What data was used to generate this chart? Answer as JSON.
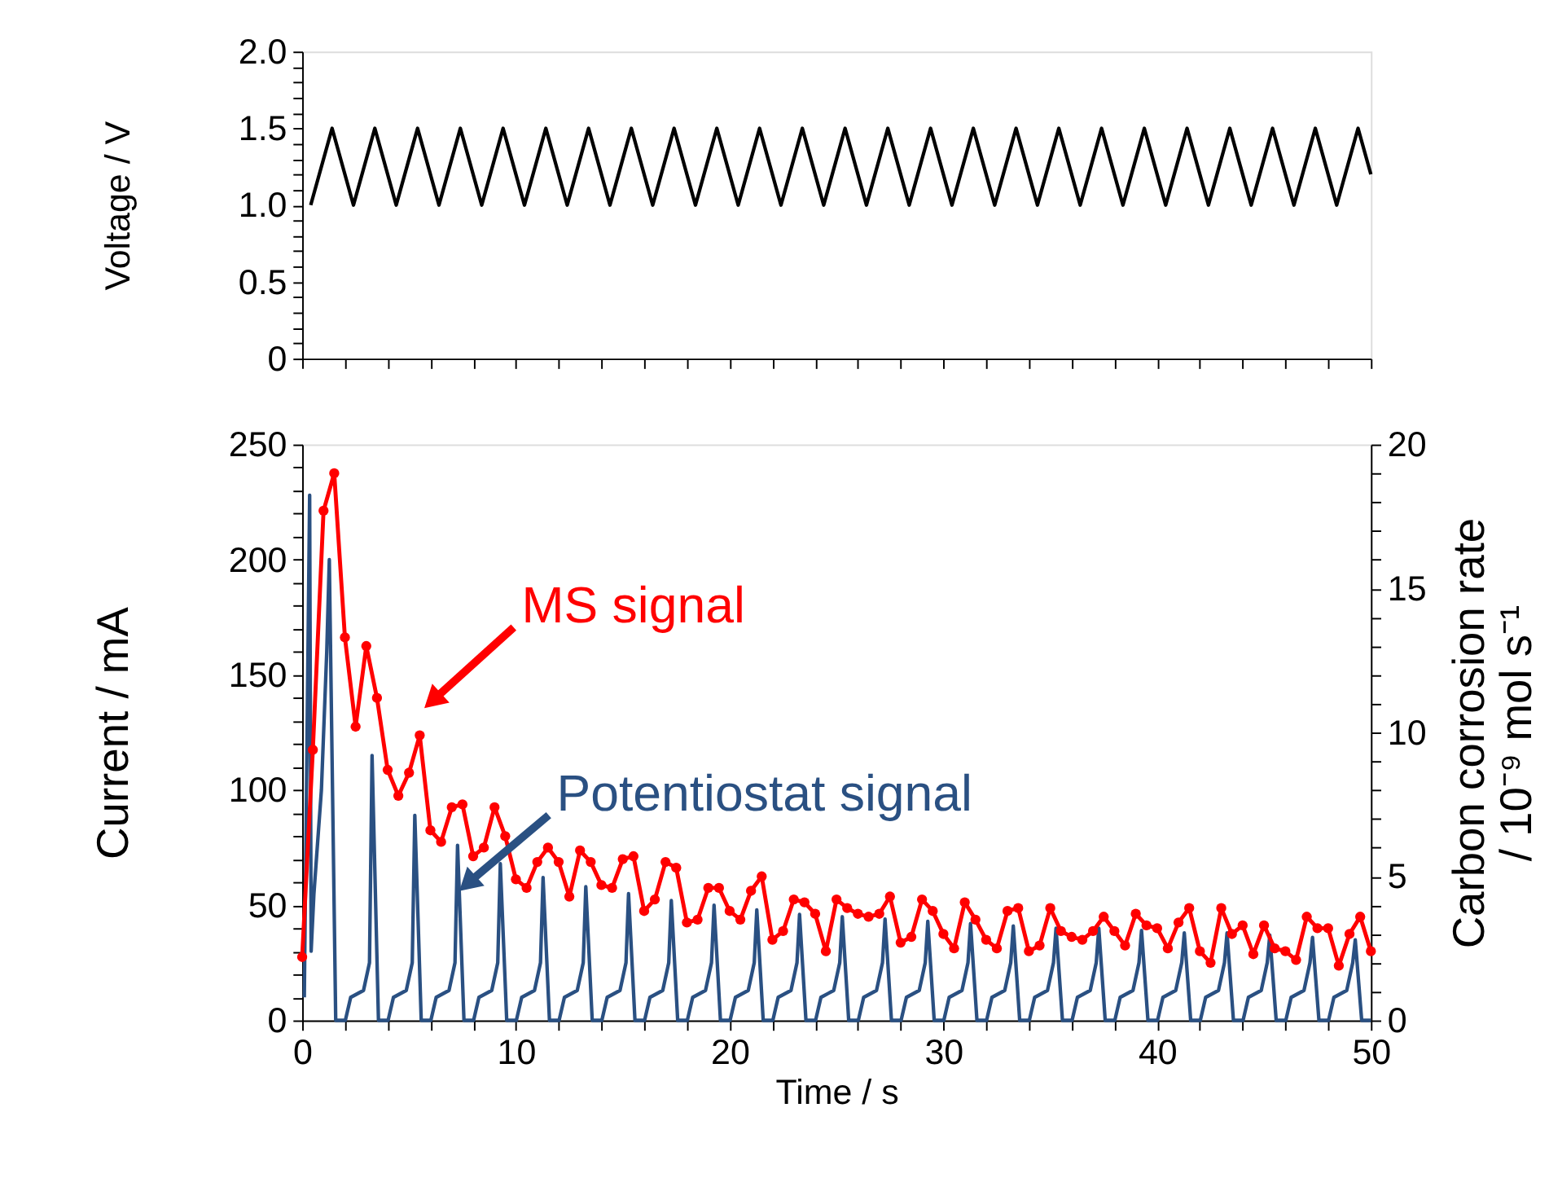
{
  "chart_data": [
    {
      "type": "line",
      "ylabel": "Voltage / V",
      "xlim": [
        0,
        50
      ],
      "ylim": [
        0,
        2.0
      ],
      "tick_labels": "y",
      "grid": false,
      "line_style": "solid",
      "xticks": [
        0,
        {
          "value": 2,
          "label": null
        },
        {
          "value": 4,
          "label": null
        },
        {
          "value": 6,
          "label": null
        },
        {
          "value": 8,
          "label": null
        },
        10,
        {
          "value": 12,
          "label": null
        },
        {
          "value": 14,
          "label": null
        },
        {
          "value": 16,
          "label": null
        },
        {
          "value": 18,
          "label": null
        },
        20,
        {
          "value": 22,
          "label": null
        },
        {
          "value": 24,
          "label": null
        },
        {
          "value": 26,
          "label": null
        },
        {
          "value": 28,
          "label": null
        },
        30,
        {
          "value": 32,
          "label": null
        },
        {
          "value": 34,
          "label": null
        },
        {
          "value": 36,
          "label": null
        },
        {
          "value": 38,
          "label": null
        },
        40,
        {
          "value": 42,
          "label": null
        },
        {
          "value": 44,
          "label": null
        },
        {
          "value": 46,
          "label": null
        },
        {
          "value": 48,
          "label": null
        },
        50
      ],
      "yticks": [
        0,
        {
          "value": 0.1,
          "label": null
        },
        {
          "value": 0.2,
          "label": null
        },
        {
          "value": 0.3,
          "label": null
        },
        {
          "value": 0.4,
          "label": null
        },
        0.5,
        {
          "value": 0.6,
          "label": null
        },
        {
          "value": 0.7,
          "label": null
        },
        {
          "value": 0.8,
          "label": null
        },
        {
          "value": 0.9,
          "label": null
        },
        {
          "value": 1.0,
          "label": "1.0"
        },
        {
          "value": 1.1,
          "label": null
        },
        {
          "value": 1.2,
          "label": null
        },
        {
          "value": 1.3,
          "label": null
        },
        {
          "value": 1.4,
          "label": null
        },
        1.5,
        {
          "value": 1.6,
          "label": null
        },
        {
          "value": 1.7,
          "label": null
        },
        {
          "value": 1.8,
          "label": null
        },
        {
          "value": 1.9,
          "label": null
        },
        {
          "value": 2.0,
          "label": "2.0"
        }
      ],
      "series": [
        {
          "color": "#000000",
          "x": [
            0.4,
            1.4,
            2.4,
            3.4,
            4.4,
            5.4,
            6.4,
            7.4,
            8.4,
            9.4,
            10.4,
            11.4,
            12.4,
            13.4,
            14.4,
            15.4,
            16.4,
            17.4,
            18.4,
            19.4,
            20.4,
            21.4,
            22.4,
            23.4,
            24.4,
            25.4,
            26.4,
            27.4,
            28.4,
            29.4,
            30.4,
            31.4,
            32.4,
            33.4,
            34.4,
            35.4,
            36.4,
            37.4,
            38.4,
            39.4,
            40.4,
            41.4,
            42.4,
            43.4,
            44.4,
            45.4,
            46.4,
            47.4,
            48.4,
            49.4,
            50
          ],
          "values": [
            1.0,
            1.5,
            1.0,
            1.5,
            1.0,
            1.5,
            1.0,
            1.5,
            1.0,
            1.5,
            1.0,
            1.5,
            1.0,
            1.5,
            1.0,
            1.5,
            1.0,
            1.5,
            1.0,
            1.5,
            1.0,
            1.5,
            1.0,
            1.5,
            1.0,
            1.5,
            1.0,
            1.5,
            1.0,
            1.5,
            1.0,
            1.5,
            1.0,
            1.5,
            1.0,
            1.5,
            1.0,
            1.5,
            1.0,
            1.5,
            1.0,
            1.5,
            1.0,
            1.5,
            1.0,
            1.5,
            1.0,
            1.5,
            1.0,
            1.5,
            1.2
          ]
        }
      ]
    },
    {
      "type": "line",
      "xlabel": "Time / s",
      "ylabel": "Current / mA",
      "y2label": "Carbon corrosion rate\n/ 10⁻⁹ mol s⁻¹",
      "xlim": [
        0,
        50
      ],
      "ylim": [
        0,
        250
      ],
      "y2lim": [
        0,
        20
      ],
      "grid": false,
      "line_style": "solid",
      "xticks": [
        0,
        {
          "value": 2,
          "label": null
        },
        {
          "value": 4,
          "label": null
        },
        {
          "value": 6,
          "label": null
        },
        {
          "value": 8,
          "label": null
        },
        10,
        {
          "value": 12,
          "label": null
        },
        {
          "value": 14,
          "label": null
        },
        {
          "value": 16,
          "label": null
        },
        {
          "value": 18,
          "label": null
        },
        20,
        {
          "value": 22,
          "label": null
        },
        {
          "value": 24,
          "label": null
        },
        {
          "value": 26,
          "label": null
        },
        {
          "value": 28,
          "label": null
        },
        30,
        {
          "value": 32,
          "label": null
        },
        {
          "value": 34,
          "label": null
        },
        {
          "value": 36,
          "label": null
        },
        {
          "value": 38,
          "label": null
        },
        40,
        {
          "value": 42,
          "label": null
        },
        {
          "value": 44,
          "label": null
        },
        {
          "value": 46,
          "label": null
        },
        {
          "value": 48,
          "label": null
        },
        50
      ],
      "yticks": [
        0,
        {
          "value": 10,
          "label": null
        },
        {
          "value": 20,
          "label": null
        },
        {
          "value": 30,
          "label": null
        },
        {
          "value": 40,
          "label": null
        },
        50,
        {
          "value": 60,
          "label": null
        },
        {
          "value": 70,
          "label": null
        },
        {
          "value": 80,
          "label": null
        },
        {
          "value": 90,
          "label": null
        },
        100,
        {
          "value": 110,
          "label": null
        },
        {
          "value": 120,
          "label": null
        },
        {
          "value": 130,
          "label": null
        },
        {
          "value": 140,
          "label": null
        },
        150,
        {
          "value": 160,
          "label": null
        },
        {
          "value": 170,
          "label": null
        },
        {
          "value": 180,
          "label": null
        },
        {
          "value": 190,
          "label": null
        },
        200,
        {
          "value": 210,
          "label": null
        },
        {
          "value": 220,
          "label": null
        },
        {
          "value": 230,
          "label": null
        },
        {
          "value": 240,
          "label": null
        },
        250
      ],
      "y2ticks": [
        0,
        {
          "value": 1,
          "label": null
        },
        {
          "value": 2,
          "label": null
        },
        {
          "value": 3,
          "label": null
        },
        {
          "value": 4,
          "label": null
        },
        5,
        {
          "value": 6,
          "label": null
        },
        {
          "value": 7,
          "label": null
        },
        {
          "value": 8,
          "label": null
        },
        {
          "value": 9,
          "label": null
        },
        10,
        {
          "value": 11,
          "label": null
        },
        {
          "value": 12,
          "label": null
        },
        {
          "value": 13,
          "label": null
        },
        {
          "value": 14,
          "label": null
        },
        15,
        {
          "value": 16,
          "label": null
        },
        {
          "value": 17,
          "label": null
        },
        {
          "value": 18,
          "label": null
        },
        {
          "value": 19,
          "label": null
        },
        20
      ],
      "series": [
        {
          "name": "Potentiostat signal",
          "color": "#2a5082",
          "x": [
            0.1,
            0.35,
            0.42,
            0.55,
            0.9,
            1.15,
            1.27,
            1.57,
            2.02,
            2.27,
            2.87,
            3.15,
            3.27,
            3.57,
            4.02,
            4.27,
            4.87,
            5.15,
            5.27,
            5.57,
            6.02,
            6.27,
            6.87,
            7.15,
            7.27,
            7.57,
            8.02,
            8.27,
            8.87,
            9.15,
            9.27,
            9.57,
            10.02,
            10.27,
            10.87,
            11.15,
            11.27,
            11.57,
            12.02,
            12.27,
            12.87,
            13.15,
            13.27,
            13.57,
            14.02,
            14.27,
            14.87,
            15.15,
            15.27,
            15.57,
            16.02,
            16.27,
            16.87,
            17.15,
            17.27,
            17.57,
            18.02,
            18.27,
            18.87,
            19.15,
            19.27,
            19.57,
            20.02,
            20.27,
            20.87,
            21.15,
            21.27,
            21.57,
            22.02,
            22.27,
            22.87,
            23.15,
            23.27,
            23.57,
            24.02,
            24.27,
            24.87,
            25.15,
            25.27,
            25.57,
            26.02,
            26.27,
            26.87,
            27.15,
            27.27,
            27.57,
            28.02,
            28.27,
            28.87,
            29.15,
            29.27,
            29.57,
            30.02,
            30.27,
            30.87,
            31.15,
            31.27,
            31.57,
            32.02,
            32.27,
            32.87,
            33.15,
            33.27,
            33.57,
            34.02,
            34.27,
            34.87,
            35.15,
            35.27,
            35.57,
            36.02,
            36.27,
            36.87,
            37.15,
            37.27,
            37.57,
            38.02,
            38.27,
            38.87,
            39.15,
            39.27,
            39.57,
            40.02,
            40.27,
            40.87,
            41.15,
            41.27,
            41.57,
            42.02,
            42.27,
            42.87,
            43.15,
            43.27,
            43.57,
            44.02,
            44.27,
            44.87,
            45.15,
            45.27,
            45.57,
            46.02,
            46.27,
            46.87,
            47.15,
            47.27,
            47.57,
            48.02,
            48.27,
            48.87,
            49.15,
            49.27,
            49.57,
            50
          ],
          "values": [
            10,
            228,
            30,
            55,
            100,
            160,
            200,
            0,
            0,
            10,
            13,
            25,
            115,
            0,
            0,
            10,
            13,
            25,
            89,
            0,
            0,
            10,
            13,
            25,
            76,
            0,
            0,
            10,
            13,
            25,
            68,
            0,
            0,
            10,
            13,
            25,
            62,
            0,
            0,
            10,
            13,
            25,
            58,
            0,
            0,
            10,
            13,
            25,
            55,
            0,
            0,
            10,
            13,
            25,
            52,
            0,
            0,
            10,
            13,
            25,
            50,
            0,
            0,
            10,
            13,
            25,
            48,
            0,
            0,
            10,
            13,
            25,
            46,
            0,
            0,
            10,
            13,
            25,
            45,
            0,
            0,
            10,
            13,
            25,
            44,
            0,
            0,
            10,
            13,
            25,
            43,
            0,
            0,
            10,
            13,
            25,
            42,
            0,
            0,
            10,
            13,
            25,
            41,
            0,
            0,
            10,
            13,
            25,
            40,
            0,
            0,
            10,
            13,
            25,
            40,
            0,
            0,
            10,
            13,
            25,
            39,
            0,
            0,
            10,
            13,
            25,
            38,
            0,
            0,
            10,
            13,
            25,
            38,
            0,
            0,
            10,
            13,
            25,
            37,
            0,
            0,
            10,
            13,
            25,
            36,
            0,
            0,
            10,
            13,
            25,
            35,
            0,
            0
          ]
        },
        {
          "name": "MS signal",
          "color": "#ff0000",
          "axis": "y2",
          "marker": "circle",
          "x": [
            0,
            0.5,
            1,
            1.5,
            2,
            2.5,
            3,
            3.5,
            4,
            4.5,
            5,
            5.5,
            6,
            6.5,
            7,
            7.5,
            8,
            8.5,
            9,
            9.5,
            10,
            10.5,
            11,
            11.5,
            12,
            12.5,
            13,
            13.5,
            14,
            14.5,
            15,
            15.5,
            16,
            16.5,
            17,
            17.5,
            18,
            18.5,
            19,
            19.5,
            20,
            20.5,
            21,
            21.5,
            22,
            22.5,
            23,
            23.5,
            24,
            24.5,
            25,
            25.5,
            26,
            26.5,
            27,
            27.5,
            28,
            28.5,
            29,
            29.5,
            30,
            30.5,
            31,
            31.5,
            32,
            32.5,
            33,
            33.5,
            34,
            34.5,
            35,
            35.5,
            36,
            36.5,
            37,
            37.5,
            38,
            38.5,
            39,
            39.5,
            40,
            40.5,
            41,
            41.5,
            42,
            42.5,
            43,
            43.5,
            44,
            44.5,
            45,
            45.5,
            46,
            46.5,
            47,
            47.5,
            48,
            48.5,
            49,
            49.5,
            50
          ],
          "values": [
            2.2,
            9.4,
            17.7,
            19.0,
            13.3,
            10.2,
            13.0,
            11.2,
            8.7,
            7.8,
            8.6,
            9.9,
            6.6,
            6.2,
            7.4,
            7.5,
            5.7,
            6.0,
            7.4,
            6.4,
            4.9,
            4.6,
            5.5,
            6.0,
            5.5,
            4.3,
            5.9,
            5.5,
            4.7,
            4.6,
            5.6,
            5.7,
            3.8,
            4.2,
            5.5,
            5.3,
            3.4,
            3.5,
            4.6,
            4.6,
            3.8,
            3.5,
            4.5,
            5.0,
            2.8,
            3.1,
            4.2,
            4.1,
            3.7,
            2.4,
            4.2,
            3.9,
            3.7,
            3.6,
            3.7,
            4.3,
            2.7,
            2.9,
            4.2,
            3.8,
            3.0,
            2.5,
            4.1,
            3.5,
            2.8,
            2.5,
            3.8,
            3.9,
            2.4,
            2.6,
            3.9,
            3.1,
            2.9,
            2.8,
            3.1,
            3.6,
            3.1,
            2.6,
            3.7,
            3.3,
            3.2,
            2.5,
            3.4,
            3.9,
            2.4,
            2.0,
            3.9,
            3.0,
            3.3,
            2.3,
            3.3,
            2.5,
            2.4,
            2.1,
            3.6,
            3.2,
            3.2,
            1.9,
            3.0,
            3.6,
            2.4
          ]
        }
      ]
    }
  ]
}
